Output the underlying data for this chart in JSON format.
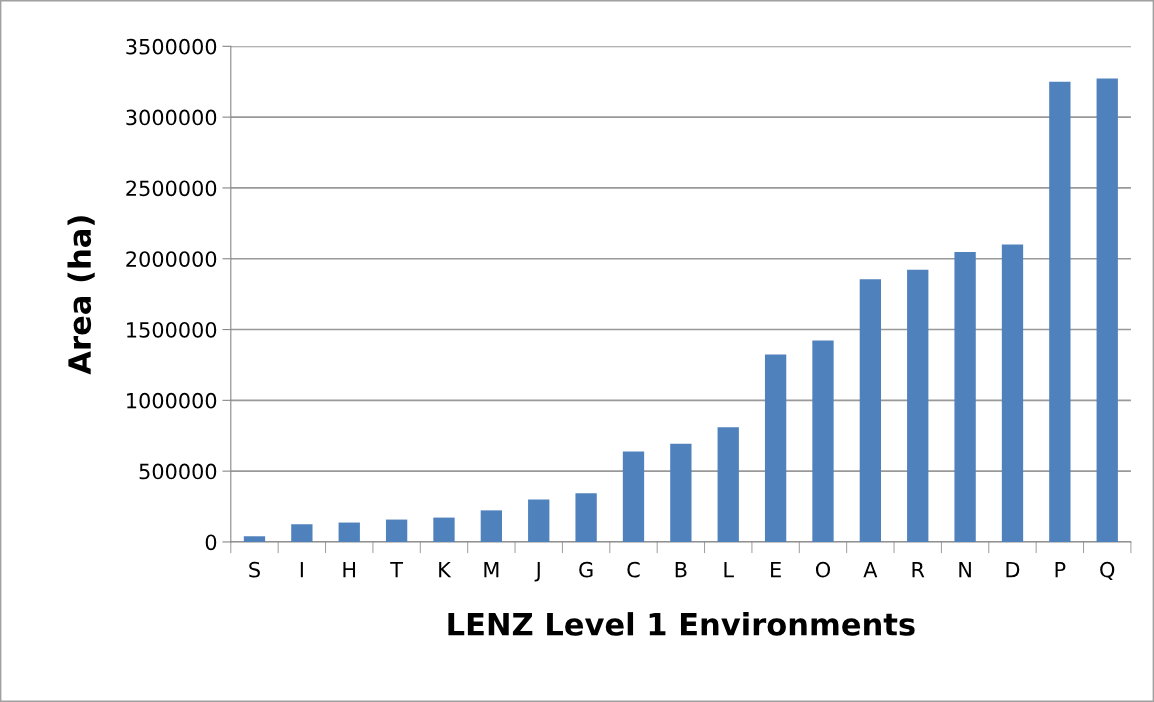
{
  "chart_data": {
    "type": "bar",
    "xlabel": "LENZ Level 1 Environments",
    "ylabel": "Area (ha)",
    "categories": [
      "S",
      "I",
      "H",
      "T",
      "K",
      "M",
      "J",
      "G",
      "C",
      "B",
      "L",
      "E",
      "O",
      "A",
      "R",
      "N",
      "D",
      "P",
      "Q"
    ],
    "values": [
      40000,
      125000,
      137000,
      158000,
      172000,
      223000,
      300000,
      343000,
      639000,
      693000,
      810000,
      1324000,
      1422000,
      1855000,
      1923000,
      2047000,
      2100000,
      3250000,
      3273000
    ],
    "color": "#4f81bd",
    "ylim": [
      0,
      3500000
    ],
    "yticks": [
      0,
      500000,
      1000000,
      1500000,
      2000000,
      2500000,
      3000000,
      3500000
    ],
    "grid": "y",
    "legend": false
  }
}
